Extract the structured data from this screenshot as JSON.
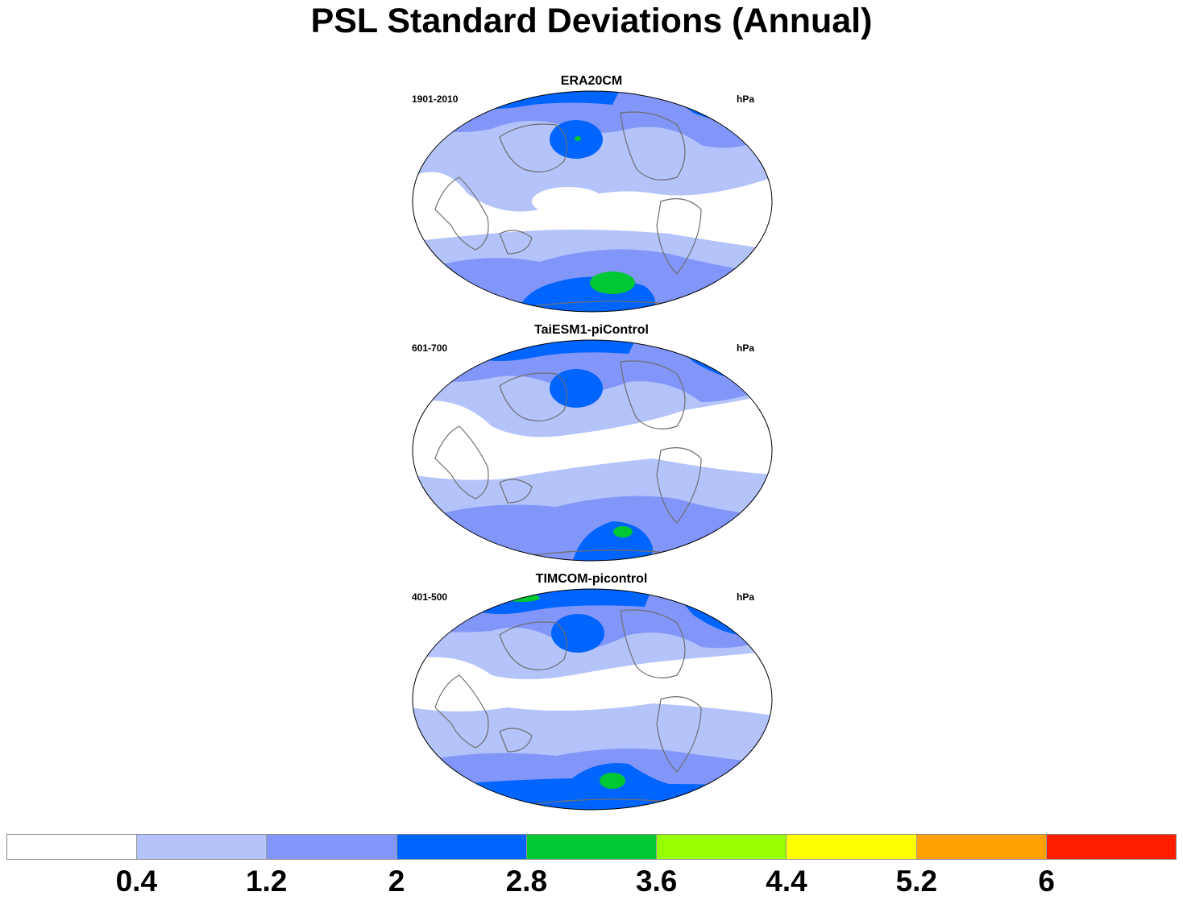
{
  "title": "PSL Standard Deviations (Annual)",
  "panels": [
    {
      "name": "ERA20CM",
      "period": "1901-2010",
      "units": "hPa"
    },
    {
      "name": "TaiESM1-piControl",
      "period": "601-700",
      "units": "hPa"
    },
    {
      "name": "TIMCOM-picontrol",
      "period": "401-500",
      "units": "hPa"
    }
  ],
  "colorbar": {
    "levels": [
      "0.4",
      "1.2",
      "2",
      "2.8",
      "3.6",
      "4.4",
      "5.2",
      "6"
    ],
    "colors": [
      "#ffffff",
      "#b4c3fa",
      "#8296fa",
      "#0064ff",
      "#00c832",
      "#96ff00",
      "#ffff00",
      "#ffa000",
      "#ff1e00"
    ]
  },
  "map_colors": {
    "land_outline": "#6e6e6e",
    "globe_outline": "#000000"
  }
}
